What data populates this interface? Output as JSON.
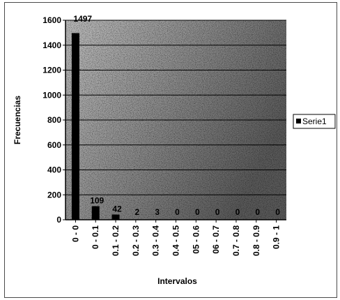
{
  "chart_data": {
    "type": "bar",
    "categories": [
      "0 - 0",
      "0 - 0.1",
      "0.1 - 0.2",
      "0.2 - 0.3",
      "0.3 - 0.4",
      "0.4 - 0.5",
      "05 - 0.6",
      "06 - 0.7",
      "0.7 - 0.8",
      "0.8 - 0.9",
      "0.9 - 1"
    ],
    "series": [
      {
        "name": "Serie1",
        "values": [
          1497,
          109,
          42,
          2,
          3,
          0,
          0,
          0,
          0,
          0,
          0
        ]
      }
    ],
    "data_labels": [
      "1497",
      "109",
      "42",
      "2",
      "3",
      "0",
      "0",
      "0",
      "0",
      "0",
      "0"
    ],
    "xlabel": "Intervalos",
    "ylabel": "Frecuencias",
    "ylim": [
      0,
      1600
    ],
    "yticks": [
      "0",
      "200",
      "400",
      "600",
      "800",
      "1000",
      "1200",
      "1400",
      "1600"
    ],
    "grid": true,
    "legend_position": "right",
    "bar_color": "#000000",
    "plot_background": "#c8c8c8"
  }
}
